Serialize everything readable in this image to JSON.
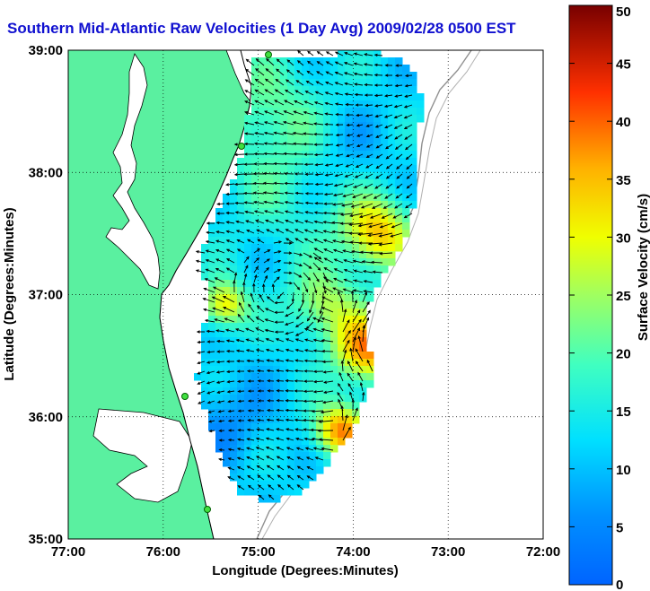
{
  "title": "Southern Mid-Atlantic Raw Velocities (1 Day Avg) 2009/02/28 0500 EST",
  "chart_data": {
    "type": "heatmap",
    "xlabel": "Longitude (Degrees:Minutes)",
    "ylabel": "Latitude (Degrees:Minutes)",
    "x_ticks": [
      "77:00",
      "76:00",
      "75:00",
      "74:00",
      "73:00",
      "72:00"
    ],
    "y_ticks": [
      "39:00",
      "38:00",
      "37:00",
      "36:00",
      "35:00"
    ],
    "xlim": [
      -77,
      -72
    ],
    "ylim": [
      35,
      39
    ],
    "grid": true,
    "colorbar": {
      "label": "Surface Velocity (cm/s)",
      "min": 0,
      "max": 50,
      "ticks": [
        0,
        5,
        10,
        15,
        20,
        25,
        30,
        35,
        40,
        45,
        50
      ]
    }
  },
  "colors": {
    "land": "#5af0a0",
    "title": "#1010d0"
  }
}
